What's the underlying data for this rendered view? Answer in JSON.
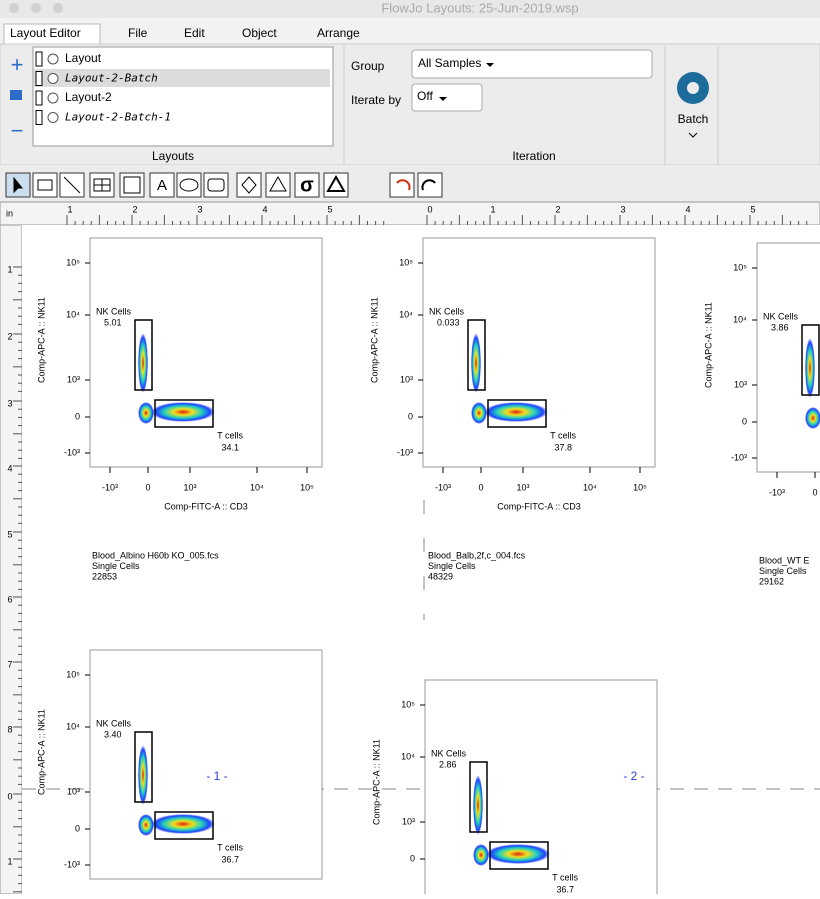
{
  "window": {
    "title": "FlowJo Layouts: 25-Jun-2019.wsp"
  },
  "menu": [
    "Layout Editor",
    "File",
    "Edit",
    "Object",
    "Arrange"
  ],
  "layouts": {
    "items": [
      "Layout",
      "Layout-2-Batch",
      "Layout-2",
      "Layout-2-Batch-1"
    ],
    "caption": "Layouts"
  },
  "iteration": {
    "group_label": "Group",
    "group_value": "All Samples",
    "iterate_label": "Iterate by",
    "iterate_value": "Off",
    "caption": "Iteration",
    "batch": "Batch"
  },
  "toolbar": {
    "text_tool": "A",
    "sigma_tool": "σ"
  },
  "ruler": {
    "unit": "in",
    "top": [
      "1",
      "2",
      "3",
      "4",
      "5",
      "0",
      "1",
      "2",
      "3",
      "4",
      "5"
    ],
    "left": [
      "1",
      "2",
      "3",
      "4",
      "5",
      "6",
      "7",
      "8",
      "0",
      "1"
    ]
  },
  "axes": {
    "y_label": "Comp-APC-A :: NK11",
    "x_label": "Comp-FITC-A :: CD3",
    "y_ticks": [
      "10⁵",
      "10⁴",
      "10³",
      "0",
      "-10³"
    ],
    "x_ticks": [
      "-10³",
      "0",
      "10³",
      "10⁴",
      "10⁵"
    ],
    "nk_gate": "NK Cells",
    "t_gate": "T cells"
  },
  "plots": [
    {
      "nk": "5.01",
      "t": "34.1",
      "sample": "Blood_Albino H60b KO_005.fcs",
      "population": "Single Cells",
      "count": "22853"
    },
    {
      "nk": "0.033",
      "t": "37.8",
      "sample": "Blood_Balb,2f,c_004.fcs",
      "population": "Single Cells",
      "count": "48329"
    },
    {
      "nk": "3.86",
      "sample": "Blood_WT E",
      "population": "Single Cells",
      "count": "29162"
    },
    {
      "nk": "3.40",
      "t": "36.7"
    },
    {
      "nk": "2.86",
      "t": "36.7"
    }
  ],
  "pages": [
    "- 1 -",
    "- 2 -"
  ]
}
